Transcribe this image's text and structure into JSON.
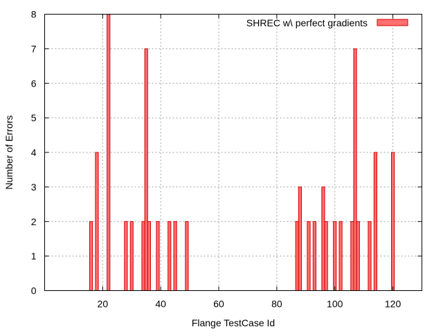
{
  "chart_data": {
    "type": "bar",
    "title": "",
    "xlabel": "Flange TestCase Id",
    "ylabel": "Number of Errors",
    "xlim": [
      0,
      130
    ],
    "ylim": [
      0,
      8
    ],
    "xticks": [
      20,
      40,
      60,
      80,
      100,
      120
    ],
    "yticks": [
      0,
      1,
      2,
      3,
      4,
      5,
      6,
      7,
      8
    ],
    "grid": true,
    "legend_position": "top-right",
    "bar_width": 1,
    "series": [
      {
        "name": "SHREC w\\ perfect gradients",
        "color": "#ff7070",
        "edge_color": "#d00000",
        "points": [
          {
            "x": 16,
            "y": 2
          },
          {
            "x": 18,
            "y": 4
          },
          {
            "x": 22,
            "y": 8
          },
          {
            "x": 28,
            "y": 2
          },
          {
            "x": 30,
            "y": 2
          },
          {
            "x": 34,
            "y": 2
          },
          {
            "x": 35,
            "y": 7
          },
          {
            "x": 36,
            "y": 2
          },
          {
            "x": 39,
            "y": 2
          },
          {
            "x": 43,
            "y": 2
          },
          {
            "x": 45,
            "y": 2
          },
          {
            "x": 49,
            "y": 2
          },
          {
            "x": 87,
            "y": 2
          },
          {
            "x": 88,
            "y": 3
          },
          {
            "x": 91,
            "y": 2
          },
          {
            "x": 93,
            "y": 2
          },
          {
            "x": 96,
            "y": 3
          },
          {
            "x": 97,
            "y": 2
          },
          {
            "x": 100,
            "y": 2
          },
          {
            "x": 102,
            "y": 2
          },
          {
            "x": 106,
            "y": 2
          },
          {
            "x": 107,
            "y": 7
          },
          {
            "x": 108,
            "y": 2
          },
          {
            "x": 112,
            "y": 2
          },
          {
            "x": 114,
            "y": 4
          },
          {
            "x": 120,
            "y": 4
          }
        ]
      }
    ]
  }
}
